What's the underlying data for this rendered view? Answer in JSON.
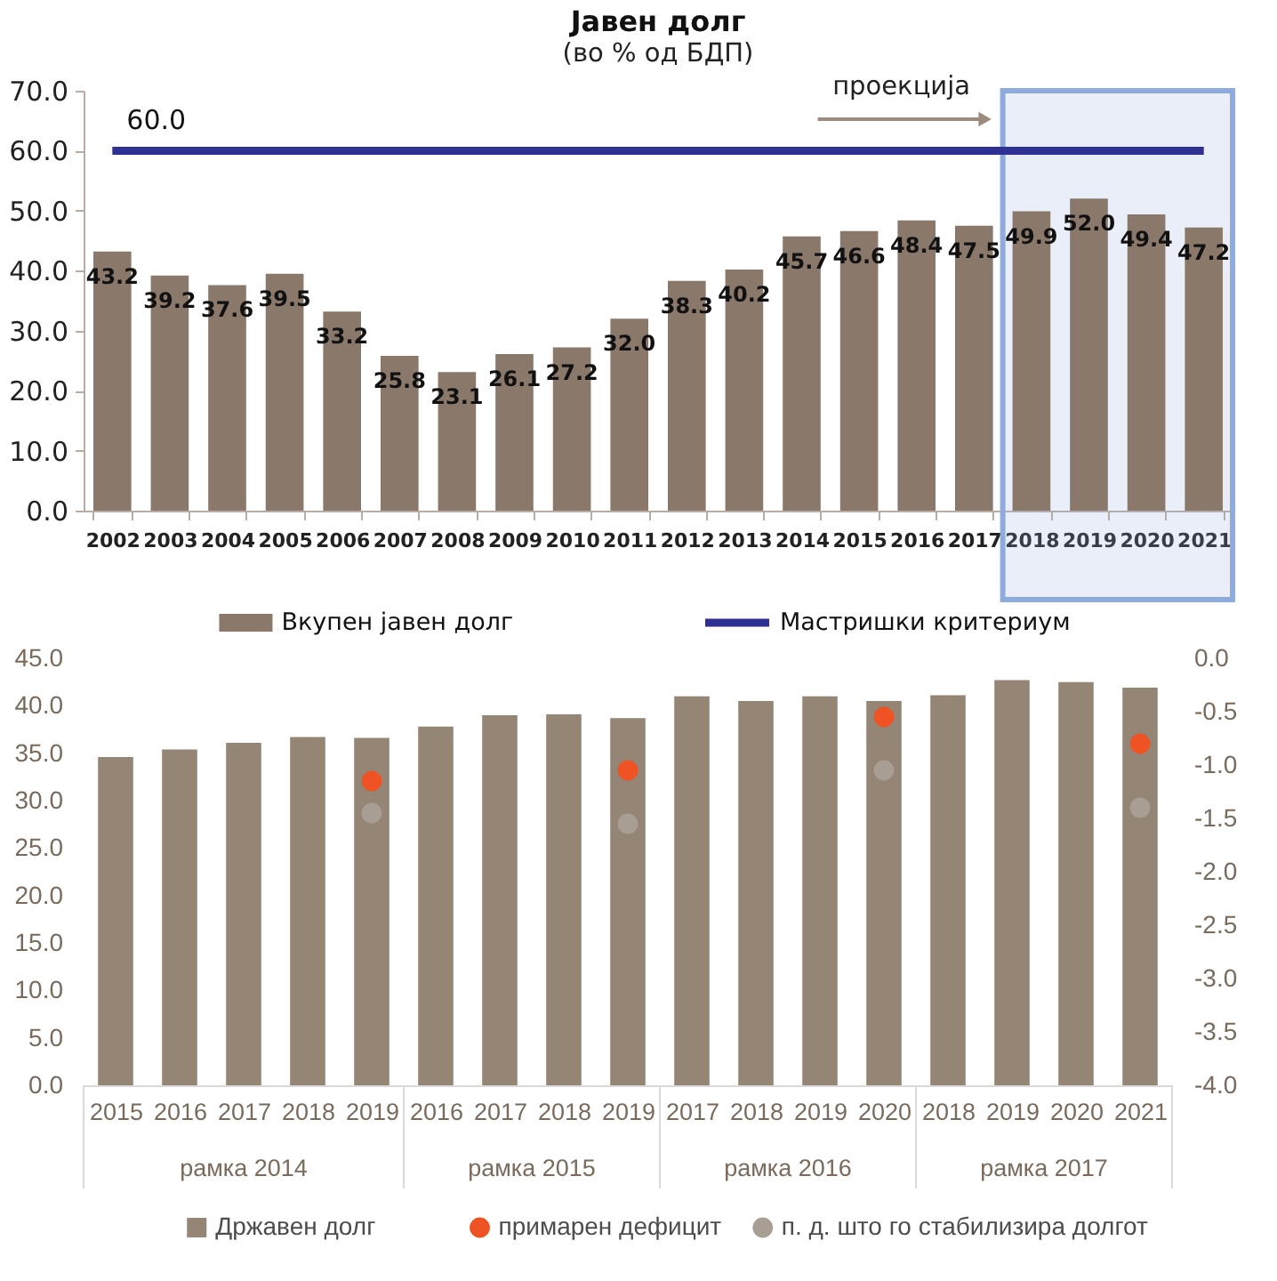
{
  "chart_data": [
    {
      "type": "bar",
      "title": "Јавен долг",
      "subtitle": "(во % од БДП)",
      "categories": [
        "2002",
        "2003",
        "2004",
        "2005",
        "2006",
        "2007",
        "2008",
        "2009",
        "2010",
        "2011",
        "2012",
        "2013",
        "2014",
        "2015",
        "2016",
        "2017",
        "2018",
        "2019",
        "2020",
        "2021"
      ],
      "series": [
        {
          "name": "Вкупен јавен долг",
          "color": "#8a796a",
          "values": [
            43.2,
            39.2,
            37.6,
            39.5,
            33.2,
            25.8,
            23.1,
            26.1,
            27.2,
            32.0,
            38.3,
            40.2,
            45.7,
            46.6,
            48.4,
            47.5,
            49.9,
            52.0,
            49.4,
            47.2
          ],
          "value_labels": [
            "43.2",
            "39.2",
            "37.6",
            "39.5",
            "33.2",
            "25.8",
            "23.1",
            "26.1",
            "27.2",
            "32.0",
            "38.3",
            "40.2",
            "45.7",
            "46.6",
            "48.4",
            "47.5",
            "49.9",
            "52.0",
            "49.4",
            "47.2"
          ]
        },
        {
          "name": "Мастришки критериум",
          "type": "line",
          "color": "#2e3192",
          "line_style": "solid",
          "values": [
            60,
            60,
            60,
            60,
            60,
            60,
            60,
            60,
            60,
            60,
            60,
            60,
            60,
            60,
            60,
            60,
            60,
            60,
            60,
            60
          ],
          "value_labels": [
            "60.0",
            null,
            null,
            null,
            null,
            null,
            null,
            null,
            null,
            null,
            null,
            null,
            null,
            null,
            null,
            null,
            null,
            null,
            null,
            null
          ]
        }
      ],
      "ylim": [
        0,
        70
      ],
      "yticks": [
        {
          "value": 0,
          "label": "0.0"
        },
        {
          "value": 10,
          "label": "10.0"
        },
        {
          "value": 20,
          "label": "20.0"
        },
        {
          "value": 30,
          "label": "30.0"
        },
        {
          "value": 40,
          "label": "40.0"
        },
        {
          "value": 50,
          "label": "50.0"
        },
        {
          "value": 60,
          "label": "60.0"
        },
        {
          "value": 70,
          "label": "70.0"
        }
      ],
      "bands": [
        {
          "axis": "x",
          "from": "2018",
          "to": "2021",
          "label": "проекција",
          "color": "#8faadc"
        }
      ],
      "legend": "bottom"
    },
    {
      "type": "bar",
      "categories": [
        "2015",
        "2016",
        "2017",
        "2018",
        "2019",
        "2016",
        "2017",
        "2018",
        "2019",
        "2017",
        "2018",
        "2019",
        "2020",
        "2018",
        "2019",
        "2020",
        "2021"
      ],
      "series": [
        {
          "name": "Државен долг",
          "color": "#958575",
          "values": [
            34.6,
            35.4,
            36.1,
            36.7,
            36.6,
            37.8,
            39.0,
            39.1,
            38.7,
            41.0,
            40.5,
            41.0,
            40.5,
            41.1,
            42.7,
            42.5,
            41.9
          ]
        },
        {
          "name": "примарен дефицит",
          "type": "scatter",
          "axis": "y2",
          "color": "#ef5323",
          "values": [
            null,
            null,
            null,
            null,
            -1.15,
            null,
            null,
            null,
            -1.05,
            null,
            null,
            null,
            -0.55,
            null,
            null,
            null,
            -0.8
          ]
        },
        {
          "name": "п. д. што го стабилизира долгот",
          "type": "scatter",
          "axis": "y2",
          "color": "#a89e94",
          "values": [
            null,
            null,
            null,
            null,
            -1.45,
            null,
            null,
            null,
            -1.55,
            null,
            null,
            null,
            -1.05,
            null,
            null,
            null,
            -1.4
          ]
        }
      ],
      "ylim": [
        0,
        45
      ],
      "yticks": [
        {
          "value": 0,
          "label": "0.0"
        },
        {
          "value": 5,
          "label": "5.0"
        },
        {
          "value": 10,
          "label": "10.0"
        },
        {
          "value": 15,
          "label": "15.0"
        },
        {
          "value": 20,
          "label": "20.0"
        },
        {
          "value": 25,
          "label": "25.0"
        },
        {
          "value": 30,
          "label": "30.0"
        },
        {
          "value": 35,
          "label": "35.0"
        },
        {
          "value": 40,
          "label": "40.0"
        },
        {
          "value": 45,
          "label": "45.0"
        }
      ],
      "y2lim": [
        -4,
        0
      ],
      "y2ticks": [
        {
          "value": -4,
          "label": "-4.0"
        },
        {
          "value": -3.5,
          "label": "-3.5"
        },
        {
          "value": -3,
          "label": "-3.0"
        },
        {
          "value": -2.5,
          "label": "-2.5"
        },
        {
          "value": -2,
          "label": "-2.0"
        },
        {
          "value": -1.5,
          "label": "-1.5"
        },
        {
          "value": -1,
          "label": "-1.0"
        },
        {
          "value": -0.5,
          "label": "-0.5"
        },
        {
          "value": 0,
          "label": "0.0"
        }
      ],
      "annotations": [
        "рамка 2014",
        "рамка 2015",
        "рамка 2016",
        "рамка 2017"
      ],
      "marker": "circle",
      "legend": "bottom"
    }
  ]
}
